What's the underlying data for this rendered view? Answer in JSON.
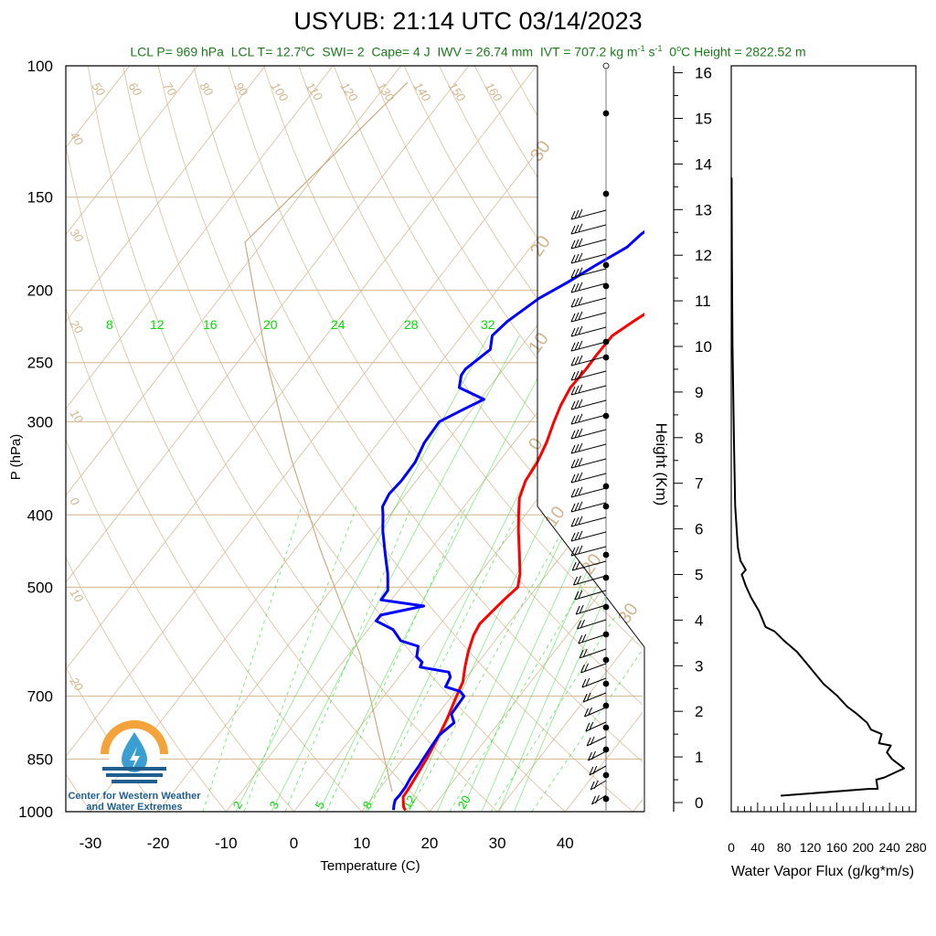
{
  "title": "USYUB: 21:14 UTC 03/14/2023",
  "subtitle": {
    "lcl_p": "LCL P= 969 hPa",
    "lcl_t_prefix": "LCL T= 12.7",
    "lcl_t_unit": "C",
    "swi": "SWI= 2",
    "cape": "Cape= 4 J",
    "iwv": "IWV = 26.74 mm",
    "ivt_prefix": "IVT = 707.2 kg m",
    "ivt_exp1": "-1",
    "ivt_mid": " s",
    "ivt_exp2": "-1",
    "zero_height_prefix": "0",
    "zero_height_suffix": "C Height = 2822.52 m"
  },
  "logo": {
    "line1": "Center for Western Weather",
    "line2": "and Water Extremes"
  },
  "colors": {
    "temperature": "#ff0000",
    "dewpoint": "#0000ff",
    "isotherm": "#d2b48c",
    "mixing_ratio": "#00dd00",
    "subtitle": "#1a7a1a"
  },
  "chart_data": [
    {
      "type": "line",
      "title": "Skew-T Log-P",
      "xlabel": "Temperature (C)",
      "ylabel": "P (hPa)",
      "xlim": [
        -34,
        52
      ],
      "ylim": [
        1000,
        100
      ],
      "yscale": "log",
      "xticks": [
        "-30",
        "-20",
        "-10",
        "0",
        "10",
        "20",
        "30",
        "40"
      ],
      "yticks": [
        "100",
        "150",
        "200",
        "250",
        "300",
        "400",
        "500",
        "700",
        "850",
        "1000"
      ],
      "temperature_axis_ticks": [
        -30,
        -20,
        -10,
        0,
        10,
        20,
        30,
        40
      ],
      "pressure_axis_ticks": [
        100,
        150,
        200,
        250,
        300,
        400,
        500,
        700,
        850,
        1000
      ],
      "isotherm_labels_top": [
        "50",
        "60",
        "70",
        "80",
        "90",
        "100",
        "110",
        "120",
        "130",
        "140",
        "150",
        "160"
      ],
      "isotherm_labels_left": [
        "40",
        "30",
        "20",
        "10",
        "0",
        "10",
        "20"
      ],
      "isotherm_labels_right": [
        "30",
        "20",
        "10",
        "0",
        "10",
        "20",
        "30"
      ],
      "mixing_ratio_labels_mid": [
        "8",
        "12",
        "16",
        "20",
        "24",
        "28",
        "32"
      ],
      "mixing_ratio_labels_bottom": [
        "2",
        "3",
        "5",
        "8",
        "12",
        "20"
      ],
      "series": [
        {
          "name": "temperature",
          "points": [
            [
              996,
              16.3
            ],
            [
              985,
              15.6
            ],
            [
              970,
              15.0
            ],
            [
              955,
              14.4
            ],
            [
              935,
              14.3
            ],
            [
              900,
              14.0
            ],
            [
              850,
              13.5
            ],
            [
              800,
              12.8
            ],
            [
              750,
              11.9
            ],
            [
              700,
              10.7
            ],
            [
              670,
              10.0
            ],
            [
              640,
              8.6
            ],
            [
              610,
              7.3
            ],
            [
              580,
              6.2
            ],
            [
              560,
              5.8
            ],
            [
              540,
              6.2
            ],
            [
              520,
              6.6
            ],
            [
              500,
              7.2
            ],
            [
              480,
              6.0
            ],
            [
              450,
              3.5
            ],
            [
              420,
              0.8
            ],
            [
              400,
              -1.0
            ],
            [
              380,
              -2.8
            ],
            [
              360,
              -3.9
            ],
            [
              340,
              -4.3
            ],
            [
              320,
              -5.2
            ],
            [
              300,
              -6.5
            ],
            [
              285,
              -7.4
            ],
            [
              270,
              -8.0
            ],
            [
              255,
              -7.8
            ],
            [
              245,
              -7.9
            ],
            [
              230,
              -7.8
            ],
            [
              220,
              -6.3
            ],
            [
              210,
              -4.6
            ],
            [
              200,
              -2.7
            ],
            [
              190,
              -0.6
            ],
            [
              182,
              1.6
            ],
            [
              175,
              2.9
            ],
            [
              168,
              4.5
            ],
            [
              160,
              6.2
            ],
            [
              155,
              6.5
            ],
            [
              150,
              6.7
            ]
          ]
        },
        {
          "name": "dewpoint",
          "points": [
            [
              995,
              14.5
            ],
            [
              980,
              14.0
            ],
            [
              965,
              13.6
            ],
            [
              950,
              13.7
            ],
            [
              925,
              13.6
            ],
            [
              900,
              13.3
            ],
            [
              870,
              13.2
            ],
            [
              850,
              13.0
            ],
            [
              820,
              12.8
            ],
            [
              790,
              12.6
            ],
            [
              760,
              13.4
            ],
            [
              740,
              12.0
            ],
            [
              720,
              11.9
            ],
            [
              700,
              11.8
            ],
            [
              690,
              10.7
            ],
            [
              680,
              8.0
            ],
            [
              660,
              7.6
            ],
            [
              650,
              6.8
            ],
            [
              640,
              2.0
            ],
            [
              630,
              1.7
            ],
            [
              620,
              0.3
            ],
            [
              600,
              -0.7
            ],
            [
              590,
              -3.9
            ],
            [
              570,
              -6.3
            ],
            [
              555,
              -9.8
            ],
            [
              545,
              -9.8
            ],
            [
              530,
              -4.5
            ],
            [
              520,
              -11.5
            ],
            [
              505,
              -11.6
            ],
            [
              480,
              -13.5
            ],
            [
              450,
              -16.3
            ],
            [
              420,
              -19.2
            ],
            [
              400,
              -21.0
            ],
            [
              390,
              -22.0
            ],
            [
              375,
              -22.5
            ],
            [
              360,
              -22.2
            ],
            [
              340,
              -22.3
            ],
            [
              320,
              -23.2
            ],
            [
              300,
              -23.4
            ],
            [
              290,
              -21.5
            ],
            [
              280,
              -19.4
            ],
            [
              270,
              -24.4
            ],
            [
              260,
              -25.5
            ],
            [
              255,
              -25.6
            ],
            [
              240,
              -24.2
            ],
            [
              230,
              -25.5
            ],
            [
              220,
              -24.9
            ],
            [
              205,
              -22.9
            ],
            [
              195,
              -20.5
            ],
            [
              185,
              -18.3
            ],
            [
              175,
              -15.8
            ],
            [
              168,
              -15.2
            ],
            [
              162,
              -14.0
            ],
            [
              155,
              -13.2
            ],
            [
              150,
              -13.3
            ]
          ]
        }
      ]
    },
    {
      "type": "line",
      "title": "",
      "xlabel": "Water Vapor Flux (g/kg*m/s)",
      "ylabel": "Height (Km)",
      "xlim": [
        0,
        280
      ],
      "ylim": [
        0,
        16.5
      ],
      "xticks": [
        "0",
        "40",
        "80",
        "120",
        "160",
        "200",
        "240",
        "280"
      ],
      "yticks": [
        "0",
        "1",
        "2",
        "3",
        "4",
        "5",
        "6",
        "7",
        "8",
        "9",
        "10",
        "11",
        "12",
        "13",
        "14",
        "15",
        "16"
      ],
      "series": [
        {
          "name": "water_vapor_flux",
          "points": [
            [
              75,
              0.15
            ],
            [
              210,
              0.3
            ],
            [
              222,
              0.3
            ],
            [
              220,
              0.5
            ],
            [
              232,
              0.55
            ],
            [
              262,
              0.75
            ],
            [
              244,
              0.95
            ],
            [
              236,
              1.1
            ],
            [
              242,
              1.25
            ],
            [
              224,
              1.3
            ],
            [
              228,
              1.5
            ],
            [
              212,
              1.6
            ],
            [
              206,
              1.75
            ],
            [
              190,
              1.95
            ],
            [
              176,
              2.1
            ],
            [
              160,
              2.35
            ],
            [
              140,
              2.6
            ],
            [
              120,
              2.95
            ],
            [
              100,
              3.3
            ],
            [
              80,
              3.55
            ],
            [
              66,
              3.75
            ],
            [
              52,
              3.85
            ],
            [
              42,
              4.2
            ],
            [
              30,
              4.5
            ],
            [
              22,
              4.75
            ],
            [
              16,
              5.0
            ],
            [
              22,
              5.1
            ],
            [
              14,
              5.3
            ],
            [
              10,
              5.6
            ],
            [
              6,
              6.5
            ],
            [
              4,
              8.0
            ],
            [
              2,
              10.0
            ],
            [
              1,
              12.0
            ],
            [
              0.5,
              13.7
            ]
          ]
        }
      ]
    }
  ]
}
